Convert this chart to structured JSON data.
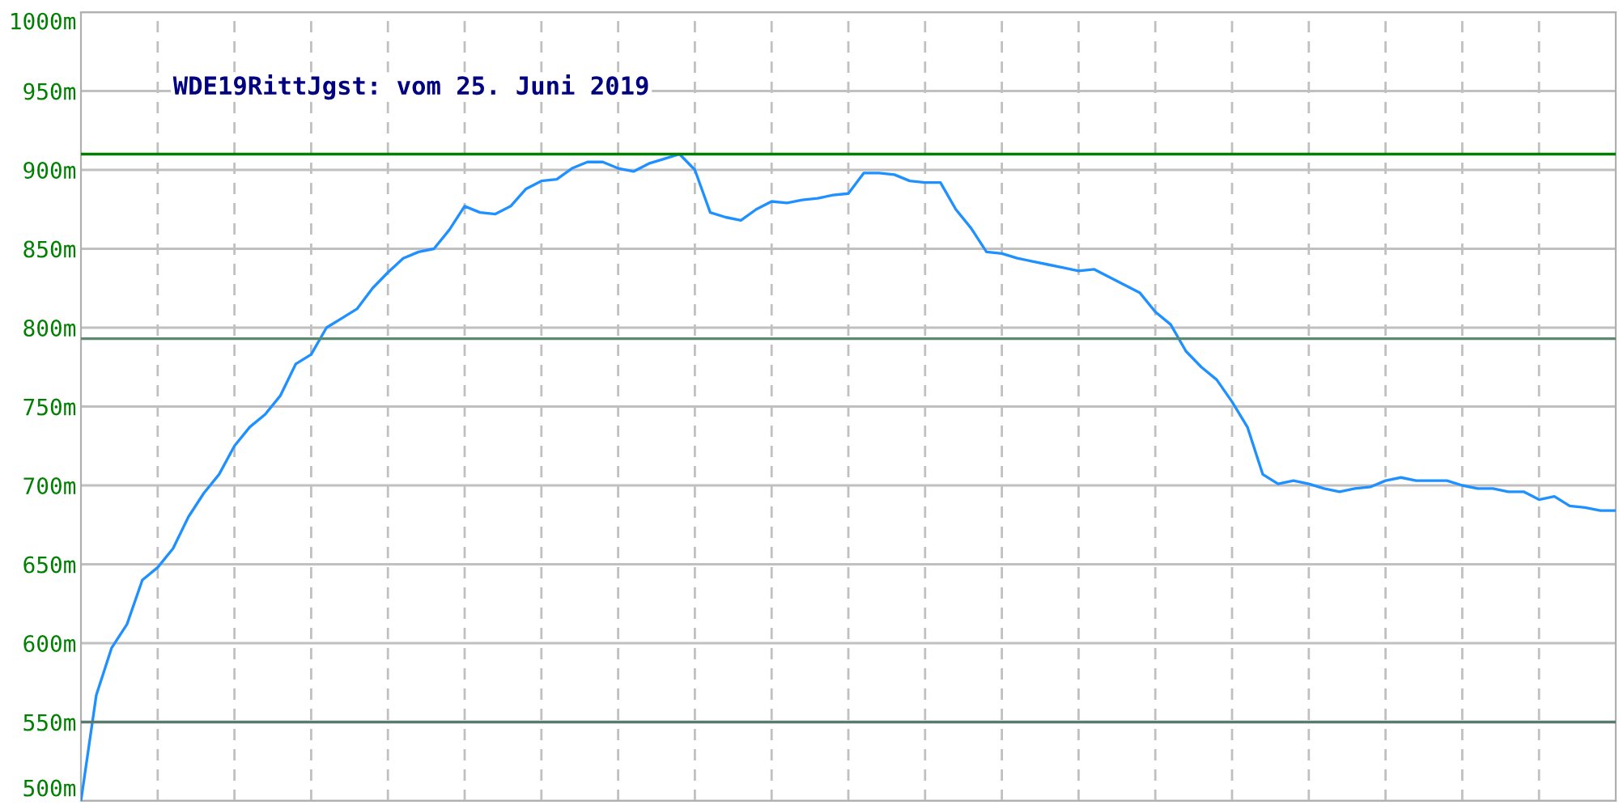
{
  "chart_data": {
    "type": "line",
    "title": "WDE19RittJgst: vom 25. Juni 2019",
    "categories": [
      null,
      null,
      null,
      null,
      null,
      null,
      null,
      null,
      null,
      null,
      null,
      null,
      null,
      null,
      null,
      null,
      null,
      null,
      null,
      null,
      null,
      null,
      null,
      null,
      null,
      null,
      null,
      null,
      null,
      null,
      null,
      null,
      null,
      null,
      null,
      null,
      null,
      null,
      null,
      null,
      null,
      null,
      null,
      null,
      null,
      null,
      null,
      null,
      null,
      null,
      null,
      null,
      null,
      null,
      null,
      null,
      null,
      null,
      null,
      null,
      null,
      null,
      null,
      null,
      null,
      null,
      null,
      null,
      null,
      null,
      null,
      null,
      null,
      null,
      null,
      null,
      null,
      null,
      null,
      null,
      null,
      null,
      null,
      null,
      null,
      null,
      null,
      null,
      null,
      null,
      null,
      null,
      null,
      null,
      null,
      null,
      null,
      null,
      null,
      null,
      null
    ],
    "series": [
      {
        "color": "#1e90ff",
        "values": [
          500,
          567,
          597,
          612,
          640,
          648,
          660,
          680,
          695,
          707,
          725,
          737,
          745,
          757,
          777,
          783,
          800,
          806,
          812,
          825,
          835,
          844,
          848,
          850,
          862,
          877,
          873,
          872,
          877,
          888,
          893,
          894,
          901,
          905,
          905,
          901,
          899,
          904,
          907,
          910,
          900,
          873,
          870,
          868,
          875,
          880,
          879,
          881,
          882,
          884,
          885,
          898,
          898,
          897,
          893,
          892,
          892,
          875,
          863,
          848,
          847,
          844,
          842,
          840,
          838,
          836,
          837,
          832,
          827,
          822,
          810,
          802,
          785,
          775,
          767,
          753,
          737,
          707,
          701,
          703,
          701,
          698,
          696,
          698,
          699,
          703,
          705,
          703,
          703,
          703,
          700,
          698,
          698,
          696,
          696,
          691,
          693,
          687,
          686,
          684,
          684
        ]
      }
    ],
    "ylim": [
      500,
      1000
    ],
    "yticks": [
      {
        "value": 500,
        "label": "500m"
      },
      {
        "value": 550,
        "label": "550m"
      },
      {
        "value": 600,
        "label": "600m"
      },
      {
        "value": 650,
        "label": "650m"
      },
      {
        "value": 700,
        "label": "700m"
      },
      {
        "value": 750,
        "label": "750m"
      },
      {
        "value": 800,
        "label": "800m"
      },
      {
        "value": 850,
        "label": "850m"
      },
      {
        "value": 900,
        "label": "900m"
      },
      {
        "value": 950,
        "label": "950m"
      },
      {
        "value": 1000,
        "label": "1000m"
      }
    ],
    "ref_lines": [
      {
        "axis": "y",
        "value": 910,
        "color": "#008000"
      },
      {
        "axis": "y",
        "value": 793,
        "color": "#5a8a70"
      },
      {
        "axis": "y",
        "value": 550,
        "color": "#5a7a70"
      }
    ],
    "grid": true,
    "tick_labels": "y",
    "marker": "none",
    "line_style": "solid"
  }
}
